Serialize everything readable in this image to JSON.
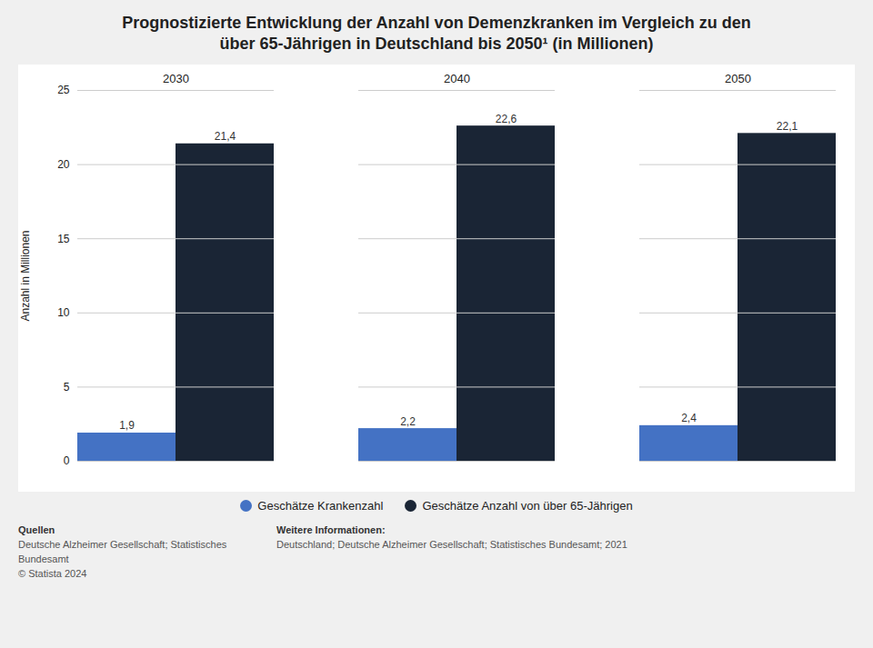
{
  "chart_data": {
    "type": "bar",
    "title": "Prognostizierte Entwicklung der Anzahl von Demenzkranken im Vergleich zu den\nüber 65-Jährigen in Deutschland bis 2050¹ (in Millionen)",
    "categories": [
      "2030",
      "2040",
      "2050"
    ],
    "series": [
      {
        "name": "Geschätze Krankenzahl",
        "color": "#4472C4",
        "values": [
          1.9,
          2.2,
          2.4
        ],
        "value_labels": [
          "1,9",
          "2,2",
          "2,4"
        ]
      },
      {
        "name": "Geschätze Anzahl von über 65-Jährigen",
        "color": "#1A2535",
        "values": [
          21.4,
          22.6,
          22.1
        ],
        "value_labels": [
          "21,4",
          "22,6",
          "22,1"
        ]
      }
    ],
    "ylabel": "Anzahl in Millionen",
    "ylim": [
      0,
      25
    ],
    "yticks": [
      0,
      5,
      10,
      15,
      20,
      25
    ],
    "grid": true,
    "legend": "bottom",
    "data_labels": true,
    "annotations": [
      [
        "Quellen",
        "Deutsche Alzheimer Gesellschaft; Statistisches",
        "Bundesamt",
        "© Statista 2024"
      ],
      [
        "Weitere Informationen:",
        "Deutschland; Deutsche Alzheimer Gesellschaft; Statistisches Bundesamt; 2021"
      ]
    ]
  }
}
